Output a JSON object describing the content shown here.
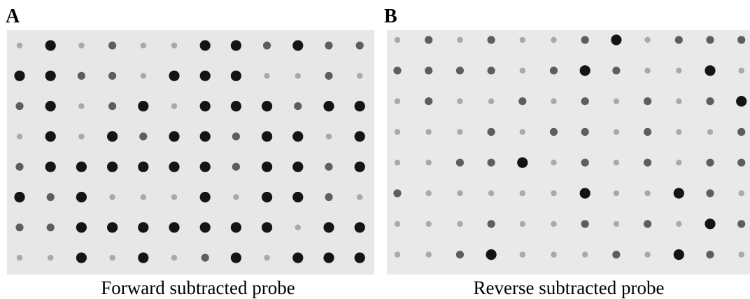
{
  "panels": [
    {
      "label": "A",
      "caption": "Forward subtracted probe"
    },
    {
      "label": "B",
      "caption": "Reverse subtracted probe"
    }
  ]
}
